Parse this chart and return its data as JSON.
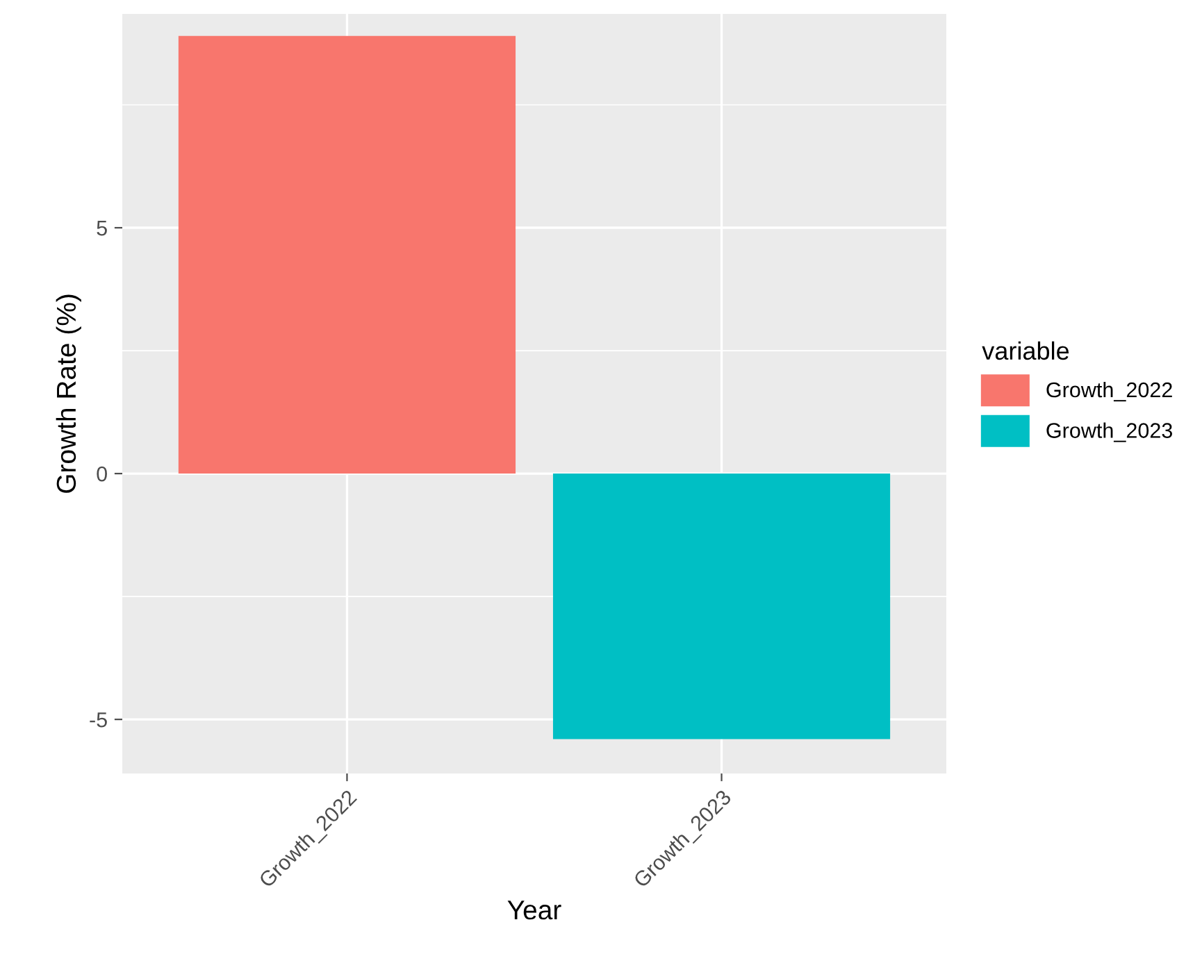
{
  "chart_data": {
    "type": "bar",
    "xlabel": "Year",
    "ylabel": "Growth Rate (%)",
    "legend_title": "variable",
    "categories": [
      "Growth_2022",
      "Growth_2023"
    ],
    "series": [
      {
        "name": "Growth_2022",
        "color": "#f8766d",
        "values": [
          8.9,
          null
        ]
      },
      {
        "name": "Growth_2023",
        "color": "#00bfc4",
        "values": [
          null,
          -5.4
        ]
      }
    ],
    "ylim": [
      -6.1,
      9.35
    ],
    "yticks": [
      -5,
      0,
      5
    ],
    "grid": true,
    "legend": "right"
  }
}
